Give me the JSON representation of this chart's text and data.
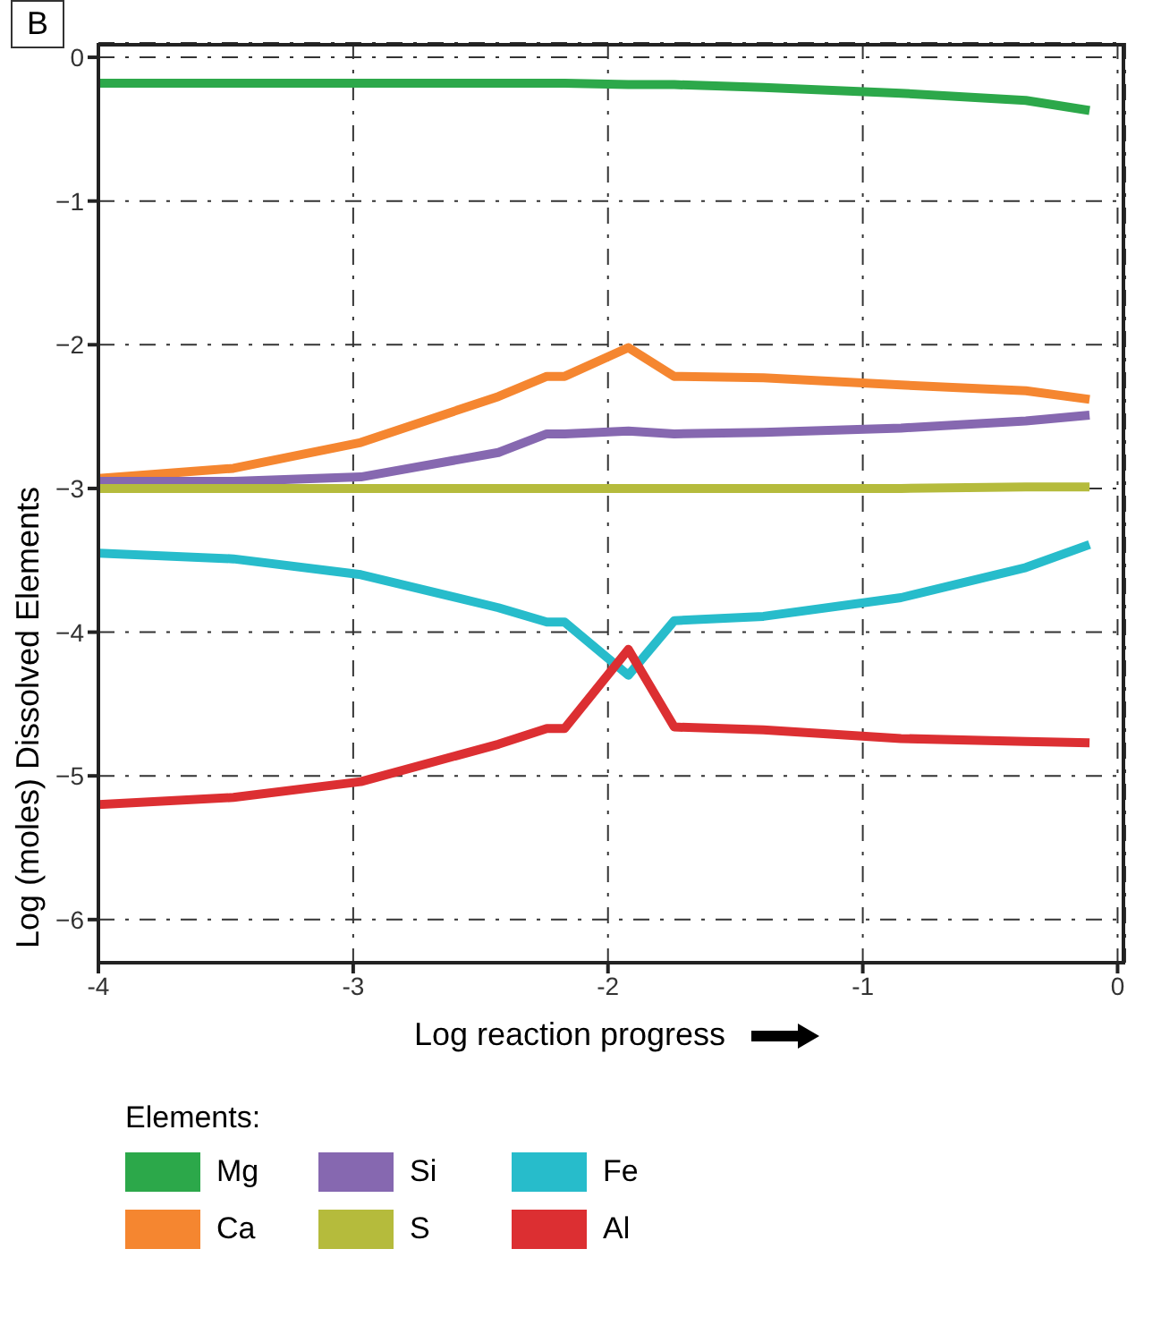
{
  "chart_data": {
    "type": "line",
    "xlabel": "Log reaction progress",
    "ylabel": "Log (moles) Dissolved Elements",
    "legend_title": "Elements:",
    "annotations": [
      "B"
    ],
    "x": [
      -4,
      -3.47,
      -2.97,
      -2.43,
      -2.24,
      -2.17,
      -1.92,
      -1.74,
      -1.39,
      -0.85,
      -0.36,
      -0.11
    ],
    "series": [
      {
        "name": "Mg",
        "color": "#2ca84a",
        "values": [
          -0.18,
          -0.18,
          -0.18,
          -0.18,
          -0.18,
          -0.18,
          -0.19,
          -0.19,
          -0.21,
          -0.25,
          -0.3,
          -0.37
        ]
      },
      {
        "name": "Ca",
        "color": "#f58630",
        "values": [
          -2.93,
          -2.86,
          -2.68,
          -2.36,
          -2.22,
          -2.22,
          -2.02,
          -2.22,
          -2.23,
          -2.28,
          -2.32,
          -2.38
        ]
      },
      {
        "name": "Si",
        "color": "#8668b0",
        "values": [
          -2.95,
          -2.95,
          -2.92,
          -2.75,
          -2.62,
          -2.62,
          -2.6,
          -2.62,
          -2.61,
          -2.58,
          -2.53,
          -2.49
        ]
      },
      {
        "name": "S",
        "color": "#b5bb3c",
        "values": [
          -3,
          -3,
          -3,
          -3,
          -3,
          -3,
          -3,
          -3,
          -3,
          -3,
          -2.99,
          -2.99
        ]
      },
      {
        "name": "Fe",
        "color": "#27bccb",
        "values": [
          -3.45,
          -3.49,
          -3.6,
          -3.83,
          -3.93,
          -3.93,
          -4.3,
          -3.92,
          -3.89,
          -3.76,
          -3.55,
          -3.39
        ]
      },
      {
        "name": "Al",
        "color": "#dc2f32",
        "values": [
          -5.2,
          -5.15,
          -5.04,
          -4.78,
          -4.67,
          -4.67,
          -4.12,
          -4.66,
          -4.68,
          -4.74,
          -4.76,
          -4.77
        ]
      }
    ],
    "xlim": [
      -4,
      0.03
    ],
    "xticks": [
      -4,
      -3,
      -2,
      -1,
      0
    ],
    "ylim": [
      -6.3,
      0.1
    ],
    "yticks": [
      {
        "value": 0,
        "label": "0"
      },
      {
        "value": -1,
        "label": "−1"
      },
      {
        "value": -2,
        "label": "−2"
      },
      {
        "value": -3,
        "label": "−3"
      },
      {
        "value": -4,
        "label": "−4"
      },
      {
        "value": -5,
        "label": "−5"
      },
      {
        "value": -6,
        "label": "−6"
      }
    ],
    "grid": true,
    "legend": "bottom",
    "marker": "none",
    "line_style": "solid"
  }
}
